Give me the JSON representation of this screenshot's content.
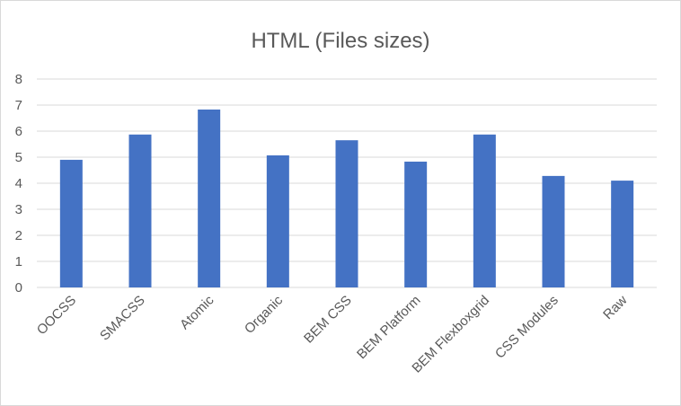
{
  "chart_data": {
    "type": "bar",
    "title": "HTML (Files sizes)",
    "categories": [
      "OOCSS",
      "SMACSS",
      "Atomic",
      "Organic",
      "BEM CSS",
      "BEM Platform",
      "BEM Flexboxgrid",
      "CSS Modules",
      "Raw"
    ],
    "values": [
      4.9,
      5.87,
      6.83,
      5.07,
      5.65,
      4.83,
      5.87,
      4.28,
      4.1
    ],
    "xlabel": "",
    "ylabel": "",
    "ylim": [
      0,
      8
    ],
    "yticks": [
      "0",
      "1",
      "2",
      "3",
      "4",
      "5",
      "6",
      "7",
      "8"
    ],
    "grid": true,
    "legend": "none",
    "bar_color": "#4472c4"
  }
}
